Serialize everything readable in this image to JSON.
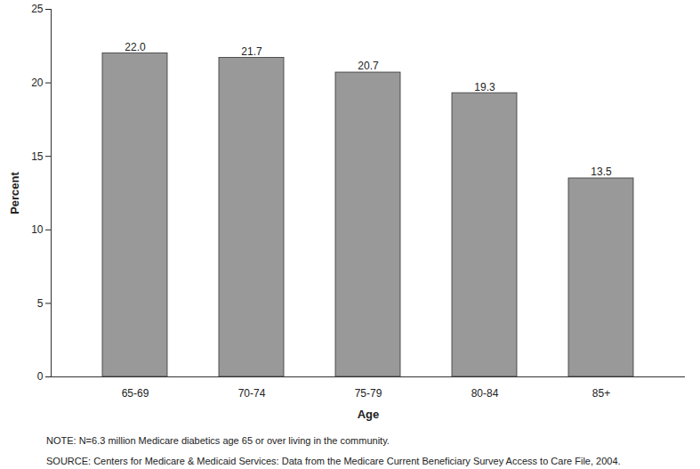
{
  "chart_data": {
    "type": "bar",
    "x_label": "Age",
    "y_label": "Percent",
    "categories": [
      "65-69",
      "70-74",
      "75-79",
      "80-84",
      "85+"
    ],
    "values": [
      22.0,
      21.7,
      20.7,
      19.3,
      13.5
    ],
    "value_labels": [
      "22.0",
      "21.7",
      "20.7",
      "19.3",
      "13.5"
    ],
    "color": "#999999",
    "ylim": [
      0,
      25
    ],
    "yticks": [
      0,
      5,
      10,
      15,
      20,
      25
    ],
    "grid": false,
    "data_labels": true,
    "annotations": [
      "NOTE: N=6.3 million Medicare diabetics age 65 or over living in the community.",
      "SOURCE: Centers for Medicare & Medicaid Services: Data from the Medicare Current Beneficiary Survey Access to Care File, 2004."
    ]
  }
}
